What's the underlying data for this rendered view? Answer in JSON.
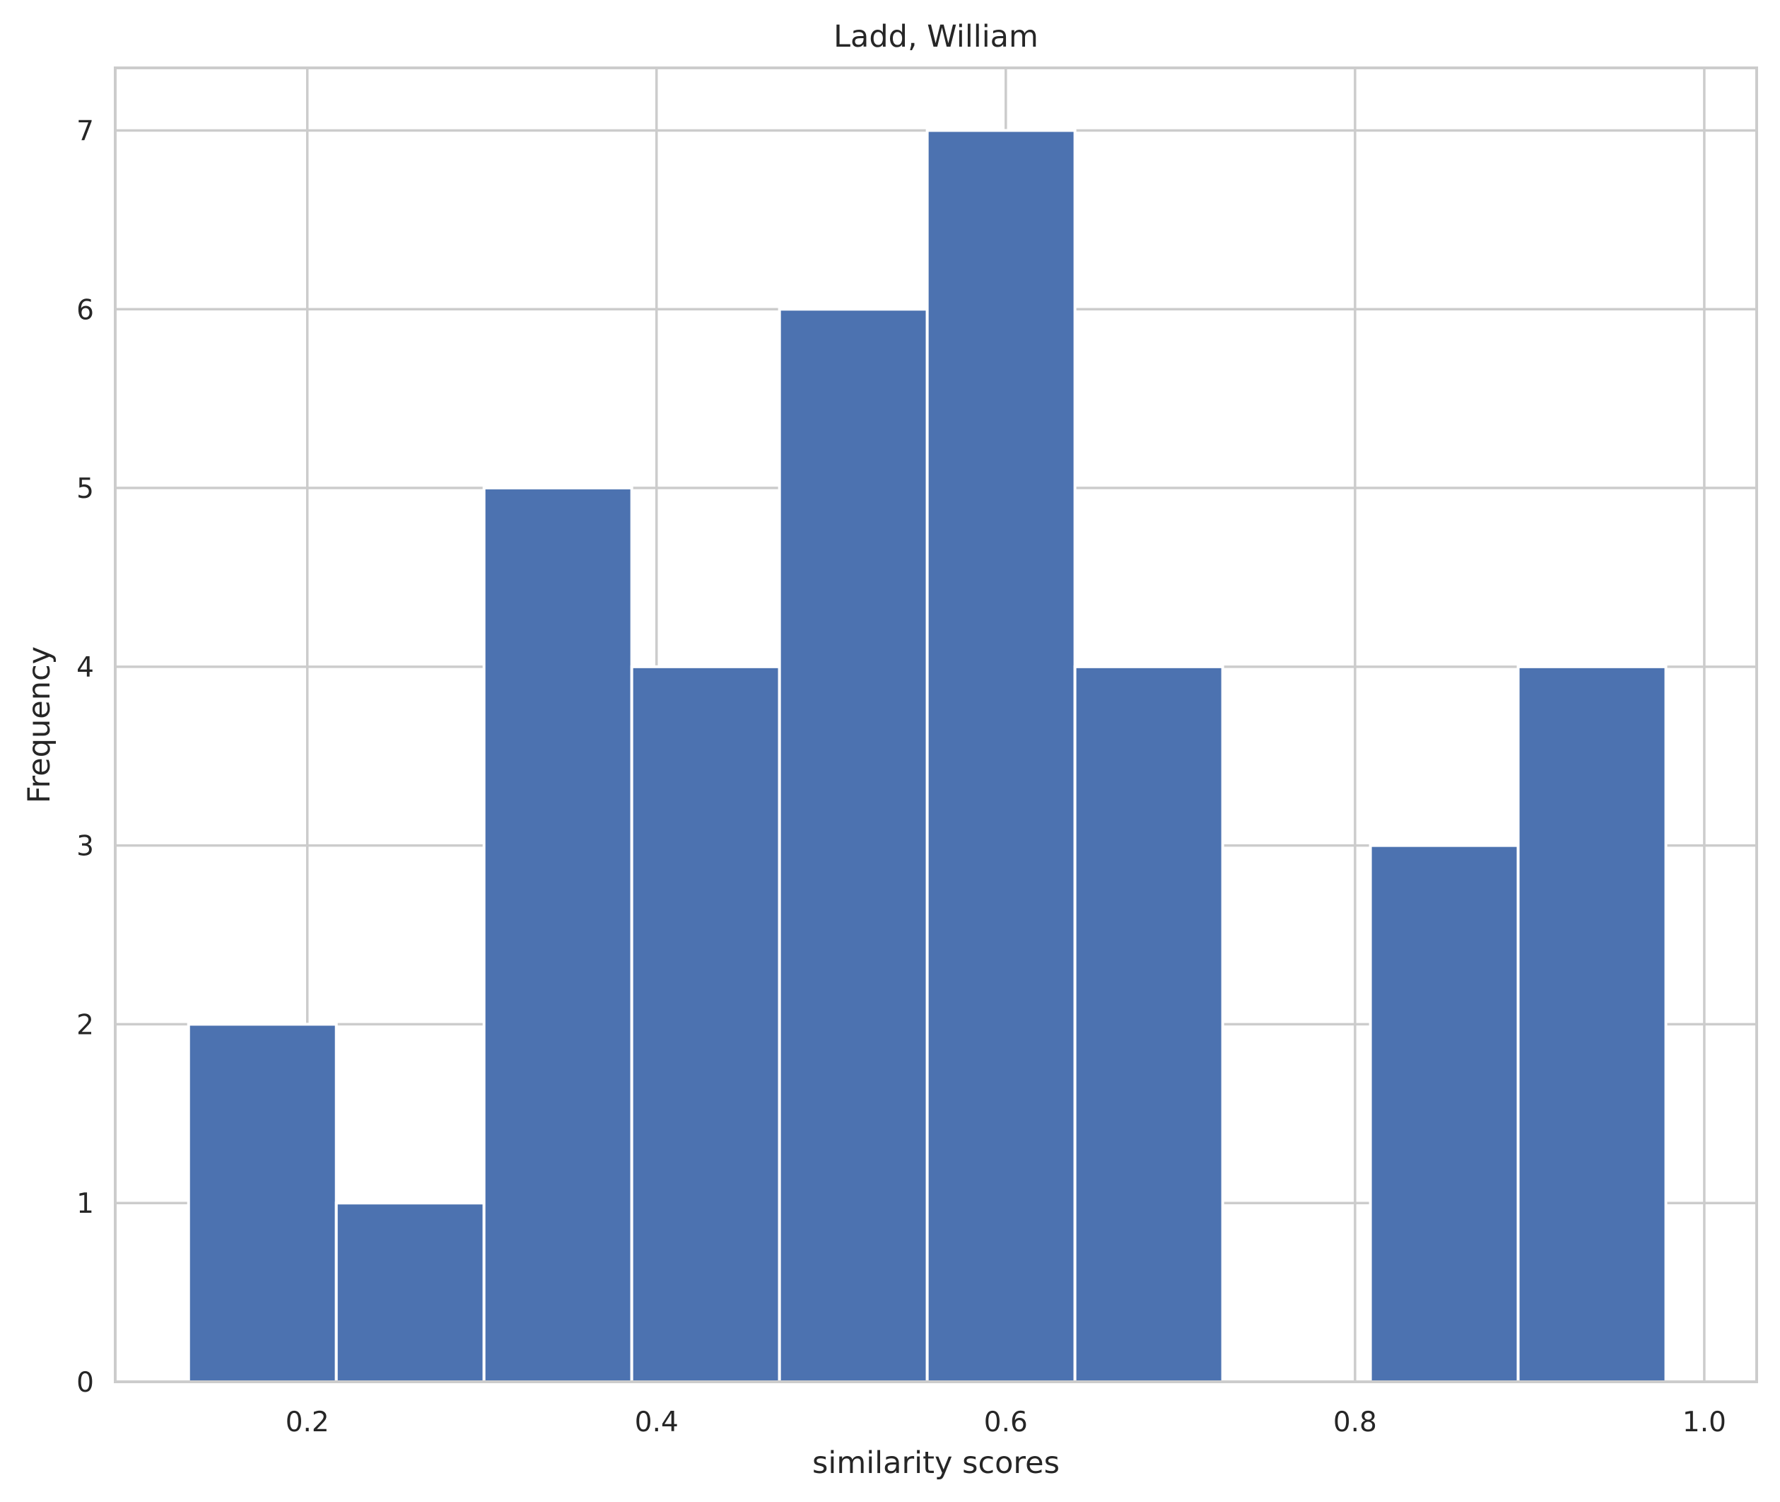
{
  "chart_data": {
    "type": "bar",
    "title": "Ladd, William",
    "xlabel": "similarity scores",
    "ylabel": "Frequency",
    "bin_edges": [
      0.132,
      0.2166,
      0.3012,
      0.3858,
      0.4704,
      0.555,
      0.6396,
      0.7242,
      0.8088,
      0.8934,
      0.978
    ],
    "values": [
      2,
      1,
      5,
      4,
      6,
      7,
      4,
      0,
      3,
      4
    ],
    "xlim": [
      0.09,
      1.03
    ],
    "ylim": [
      0,
      7.35
    ],
    "xticks": [
      0.2,
      0.4,
      0.6,
      0.8,
      1.0
    ],
    "xtick_labels": [
      "0.2",
      "0.4",
      "0.6",
      "0.8",
      "1.0"
    ],
    "yticks": [
      0,
      1,
      2,
      3,
      4,
      5,
      6,
      7
    ],
    "ytick_labels": [
      "0",
      "1",
      "2",
      "3",
      "4",
      "5",
      "6",
      "7"
    ],
    "grid": true,
    "bar_color": "#4c72b0",
    "grid_color": "#cccccc"
  }
}
